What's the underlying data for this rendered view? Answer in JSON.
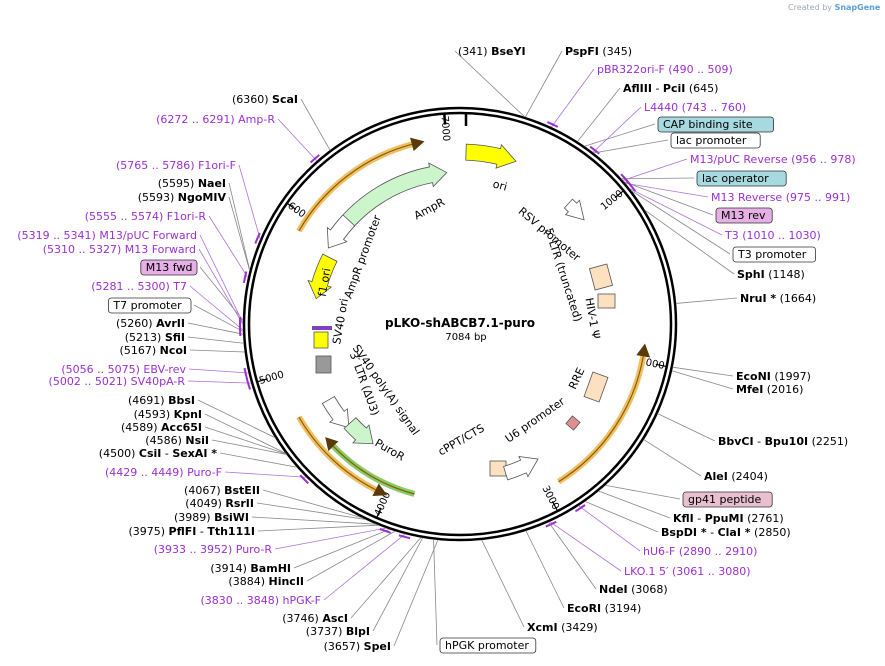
{
  "header": {
    "credit": "Created by",
    "brand": "SnapGene"
  },
  "plasmid": {
    "name": "pLKO-shABCB7.1-puro",
    "length": "7084 bp"
  },
  "ruler_ticks": [
    "1000",
    "2000",
    "3000",
    "4000",
    "5000",
    "6000",
    "7000"
  ],
  "features": [
    {
      "label": "ori",
      "kind": "arrow",
      "color": "#ffff00"
    },
    {
      "label": "AmpR",
      "kind": "arrow",
      "color": "#ccf5cc"
    },
    {
      "label": "AmpR promoter",
      "kind": "arrow",
      "color": "#ffffff"
    },
    {
      "label": "f1 ori",
      "kind": "arrow",
      "color": "#ffff00"
    },
    {
      "label": "SV40 ori",
      "kind": "box",
      "color": "#ffff00"
    },
    {
      "label": "SV40 poly(A) signal",
      "kind": "box",
      "color": "#999999"
    },
    {
      "label": "3′ LTR (ΔU3)",
      "kind": "arrow",
      "color": "#ffffff"
    },
    {
      "label": "PuroR",
      "kind": "arrow",
      "color": "#ccf5cc"
    },
    {
      "label": "cPPT/CTS",
      "kind": "box",
      "color": "#fce0c0"
    },
    {
      "label": "U6 promoter",
      "kind": "arrow",
      "color": "#ffffff"
    },
    {
      "label": "RRE",
      "kind": "box",
      "color": "#fce0c0"
    },
    {
      "label": "HIV-1 Ψ",
      "kind": "box",
      "color": "#fce0c0"
    },
    {
      "label": "5′ LTR (truncated)",
      "kind": "box",
      "color": "#fce0c0"
    },
    {
      "label": "RSV promoter",
      "kind": "arrow",
      "color": "#ffffff"
    }
  ],
  "sites": {
    "bseyi": {
      "pos": "(341)",
      "name": "BseYI"
    },
    "pspfi": {
      "name": "PspFI",
      "pos": "(345)"
    },
    "pbr": {
      "name": "pBR322ori-F",
      "range": "(490 .. 509)"
    },
    "afliii": {
      "name": "AflIII",
      "sep": "- ",
      "name2": "PciI",
      "pos": "(645)"
    },
    "l4440": {
      "name": "L4440",
      "range": "(743 .. 760)"
    },
    "cap": {
      "name": "CAP binding site"
    },
    "lacp": {
      "name": "lac promoter"
    },
    "m13pucrev": {
      "name": "M13/pUC Reverse",
      "range": "(956 .. 978)"
    },
    "lacop": {
      "name": "lac operator"
    },
    "m13rev": {
      "name": "M13 Reverse",
      "range": "(975 .. 991)"
    },
    "m13revbox": {
      "name": "M13 rev"
    },
    "t3": {
      "name": "T3",
      "range": "(1010 .. 1030)"
    },
    "t3p": {
      "name": "T3 promoter"
    },
    "sphi": {
      "name": "SphI",
      "pos": "(1148)"
    },
    "nrui": {
      "name": "NruI *",
      "pos": "(1664)"
    },
    "econi": {
      "name": "EcoNI",
      "pos": "(1997)"
    },
    "mfei": {
      "name": "MfeI",
      "pos": "(2016)"
    },
    "bbvci": {
      "name": "BbvCI",
      "sep": "- ",
      "name2": "Bpu10I",
      "pos": "(2251)"
    },
    "alei": {
      "name": "AleI",
      "pos": "(2404)"
    },
    "gp41": {
      "name": "gp41 peptide"
    },
    "kfli": {
      "name": "KflI",
      "sep": "- ",
      "name2": "PpuMI",
      "pos": "(2761)"
    },
    "bspdi": {
      "name": "BspDI *",
      "sep": "- ",
      "name2": "ClaI *",
      "pos": "(2850)"
    },
    "hu6": {
      "name": "hU6-F",
      "range": "(2890 .. 2910)"
    },
    "lko": {
      "name": "LKO.1 5′",
      "range": "(3061 .. 3080)"
    },
    "ndei": {
      "name": "NdeI",
      "pos": "(3068)"
    },
    "ecori": {
      "name": "EcoRI",
      "pos": "(3194)"
    },
    "xcmi": {
      "name": "XcmI",
      "pos": "(3429)"
    },
    "hpgkp": {
      "name": "hPGK promoter"
    },
    "spei": {
      "pos": "(3657)",
      "name": "SpeI"
    },
    "blpi": {
      "pos": "(3737)",
      "name": "BlpI"
    },
    "asci": {
      "pos": "(3746)",
      "name": "AscI"
    },
    "hpgkf": {
      "range": "(3830 .. 3848)",
      "name": "hPGK-F"
    },
    "hincii": {
      "pos": "(3884)",
      "name": "HincII"
    },
    "bamhi": {
      "pos": "(3914)",
      "name": "BamHI"
    },
    "puror": {
      "range": "(3933 .. 3952)",
      "name": "Puro-R"
    },
    "pflfi": {
      "pos": "(3975)",
      "name": "PflFI",
      "sep": "- ",
      "name2": "Tth111I"
    },
    "bsiwi": {
      "pos": "(3989)",
      "name": "BsiWI"
    },
    "rsrii": {
      "pos": "(4049)",
      "name": "RsrII"
    },
    "bsteii": {
      "pos": "(4067)",
      "name": "BstEII"
    },
    "purof": {
      "range": "(4429 .. 4449)",
      "name": "Puro-F"
    },
    "csii": {
      "pos": "(4500)",
      "name": "CsiI",
      "sep": "- ",
      "name2": "SexAI *"
    },
    "nsii": {
      "pos": "(4586)",
      "name": "NsiI"
    },
    "acc65i": {
      "pos": "(4589)",
      "name": "Acc65I"
    },
    "kpni": {
      "pos": "(4593)",
      "name": "KpnI"
    },
    "bbsi": {
      "pos": "(4691)",
      "name": "BbsI"
    },
    "sv40par": {
      "range": "(5002 .. 5021)",
      "name": "SV40pA-R"
    },
    "ebv": {
      "range": "(5056 .. 5075)",
      "name": "EBV-rev"
    },
    "ncoi": {
      "pos": "(5167)",
      "name": "NcoI"
    },
    "sfii": {
      "pos": "(5213)",
      "name": "SfiI"
    },
    "avrii": {
      "pos": "(5260)",
      "name": "AvrII"
    },
    "t7p": {
      "name": "T7 promoter"
    },
    "t7": {
      "range": "(5281 .. 5300)",
      "name": "T7"
    },
    "m13fwdbox": {
      "name": "M13 fwd"
    },
    "m13fwd": {
      "range": "(5310 .. 5327)",
      "name": "M13 Forward"
    },
    "m13pucfwd": {
      "range": "(5319 .. 5341)",
      "name": "M13/pUC Forward"
    },
    "f1orir": {
      "range": "(5555 .. 5574)",
      "name": "F1ori-R"
    },
    "ngomiv": {
      "pos": "(5593)",
      "name": "NgoMIV"
    },
    "naei": {
      "pos": "(5595)",
      "name": "NaeI"
    },
    "f1orif": {
      "range": "(5765 .. 5786)",
      "name": "F1ori-F"
    },
    "ampr": {
      "range": "(6272 .. 6291)",
      "name": "Amp-R"
    },
    "scai": {
      "pos": "(6360)",
      "name": "ScaI"
    }
  },
  "colors": {
    "primer": "#9b30d0",
    "label_box_blue": "#a7d9e0",
    "label_box_pink": "#e6b0e6",
    "gp41_box": "#e8c0d0",
    "orf_orange": "#f0c060",
    "orf_green": "#88cc66"
  }
}
